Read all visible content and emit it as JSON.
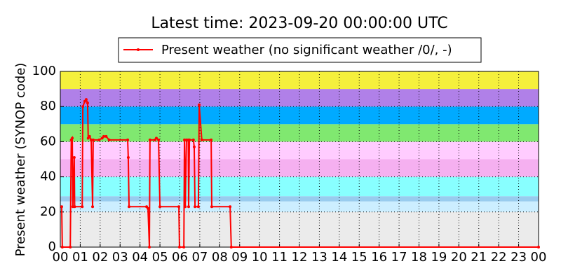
{
  "chart_data": {
    "type": "line",
    "title": "Latest time: 2023-09-20 00:00:00 UTC",
    "y_label": "Present weather (SYNOP code)",
    "x": [
      0.07,
      0.1,
      0.5,
      0.55,
      0.6,
      0.63,
      0.7,
      0.72,
      1.1,
      1.13,
      1.23,
      1.3,
      1.37,
      1.4,
      1.47,
      1.55,
      1.62,
      1.65,
      1.95,
      2.1,
      2.18,
      2.3,
      2.45,
      3.38,
      3.41,
      3.45,
      4.33,
      4.4,
      4.47,
      4.5,
      4.75,
      4.82,
      4.93,
      5.0,
      5.95,
      5.98,
      6.2,
      6.23,
      6.27,
      6.33,
      6.42,
      6.44,
      6.48,
      6.68,
      6.72,
      6.76,
      6.93,
      6.97,
      7.1,
      7.57,
      7.6,
      8.52,
      8.58,
      24
    ],
    "series": [
      {
        "name": "Present weather (no significant weather /0/, -)",
        "color": "#ff0000",
        "values": [
          23,
          0,
          0,
          61,
          62,
          23,
          51,
          23,
          23,
          80,
          83,
          84,
          82,
          62,
          63,
          61,
          23,
          61,
          61,
          62,
          63,
          63,
          61,
          61,
          51,
          23,
          23,
          22,
          0,
          61,
          61,
          62,
          61,
          23,
          23,
          0,
          0,
          61,
          23,
          61,
          61,
          23,
          61,
          61,
          57,
          23,
          23,
          81,
          61,
          61,
          23,
          23,
          0,
          0
        ]
      }
    ],
    "bands": [
      {
        "from": 0,
        "to": 20,
        "color": "#ebebeb"
      },
      {
        "from": 20,
        "to": 26,
        "color": "#cceeff"
      },
      {
        "from": 26,
        "to": 29,
        "color": "#99ccee"
      },
      {
        "from": 29,
        "to": 40,
        "color": "#88ffff"
      },
      {
        "from": 40,
        "to": 50,
        "color": "#f5b0f0"
      },
      {
        "from": 50,
        "to": 60,
        "color": "#ffccff"
      },
      {
        "from": 60,
        "to": 70,
        "color": "#80e870"
      },
      {
        "from": 70,
        "to": 80,
        "color": "#00aaff"
      },
      {
        "from": 80,
        "to": 90,
        "color": "#b080e8"
      },
      {
        "from": 90,
        "to": 100,
        "color": "#f5f03c"
      }
    ],
    "xlim": [
      0,
      24
    ],
    "ylim": [
      0,
      100
    ],
    "xticks": [
      {
        "value": 0,
        "label": "00"
      },
      {
        "value": 1,
        "label": "01"
      },
      {
        "value": 2,
        "label": "02"
      },
      {
        "value": 3,
        "label": "03"
      },
      {
        "value": 4,
        "label": "04"
      },
      {
        "value": 5,
        "label": "05"
      },
      {
        "value": 6,
        "label": "06"
      },
      {
        "value": 7,
        "label": "07"
      },
      {
        "value": 8,
        "label": "08"
      },
      {
        "value": 9,
        "label": "09"
      },
      {
        "value": 10,
        "label": "10"
      },
      {
        "value": 11,
        "label": "11"
      },
      {
        "value": 12,
        "label": "12"
      },
      {
        "value": 13,
        "label": "13"
      },
      {
        "value": 14,
        "label": "14"
      },
      {
        "value": 15,
        "label": "15"
      },
      {
        "value": 16,
        "label": "16"
      },
      {
        "value": 17,
        "label": "17"
      },
      {
        "value": 18,
        "label": "18"
      },
      {
        "value": 19,
        "label": "19"
      },
      {
        "value": 20,
        "label": "20"
      },
      {
        "value": 21,
        "label": "21"
      },
      {
        "value": 22,
        "label": "22"
      },
      {
        "value": 23,
        "label": "23"
      },
      {
        "value": 24,
        "label": "00"
      }
    ],
    "yticks": [
      0,
      20,
      40,
      60,
      80,
      100
    ],
    "grid": true,
    "legend": "top"
  }
}
